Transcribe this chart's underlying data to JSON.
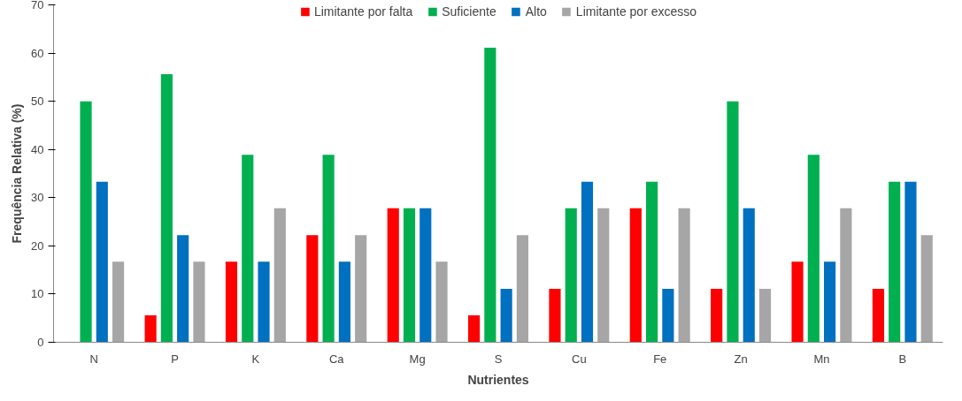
{
  "chart_data": {
    "type": "bar",
    "xlabel": "Nutrientes",
    "ylabel": "Frequência Relativa (%)",
    "categories": [
      "N",
      "P",
      "K",
      "Ca",
      "Mg",
      "S",
      "Cu",
      "Fe",
      "Zn",
      "Mn",
      "B"
    ],
    "series": [
      {
        "name": "Limitante por falta",
        "color": "#ff0000",
        "values": [
          0,
          5.6,
          16.7,
          22.2,
          27.8,
          5.6,
          11.1,
          27.8,
          11.1,
          16.7,
          11.1
        ]
      },
      {
        "name": "Suficiente",
        "color": "#00b050",
        "values": [
          50,
          55.6,
          38.9,
          38.9,
          27.8,
          61.1,
          27.8,
          33.3,
          50,
          38.9,
          33.3
        ]
      },
      {
        "name": "Alto",
        "color": "#0070c0",
        "values": [
          33.3,
          22.2,
          16.7,
          16.7,
          27.8,
          11.1,
          33.3,
          11.1,
          27.8,
          16.7,
          33.3
        ]
      },
      {
        "name": "Limitante por excesso",
        "color": "#a6a6a6",
        "values": [
          16.7,
          16.7,
          27.8,
          22.2,
          16.7,
          22.2,
          27.8,
          27.8,
          11.1,
          27.8,
          22.2
        ]
      }
    ],
    "ylim": [
      0,
      70
    ],
    "yticks": [
      0,
      10,
      20,
      30,
      40,
      50,
      60,
      70
    ],
    "grid": false,
    "legend": "top"
  }
}
